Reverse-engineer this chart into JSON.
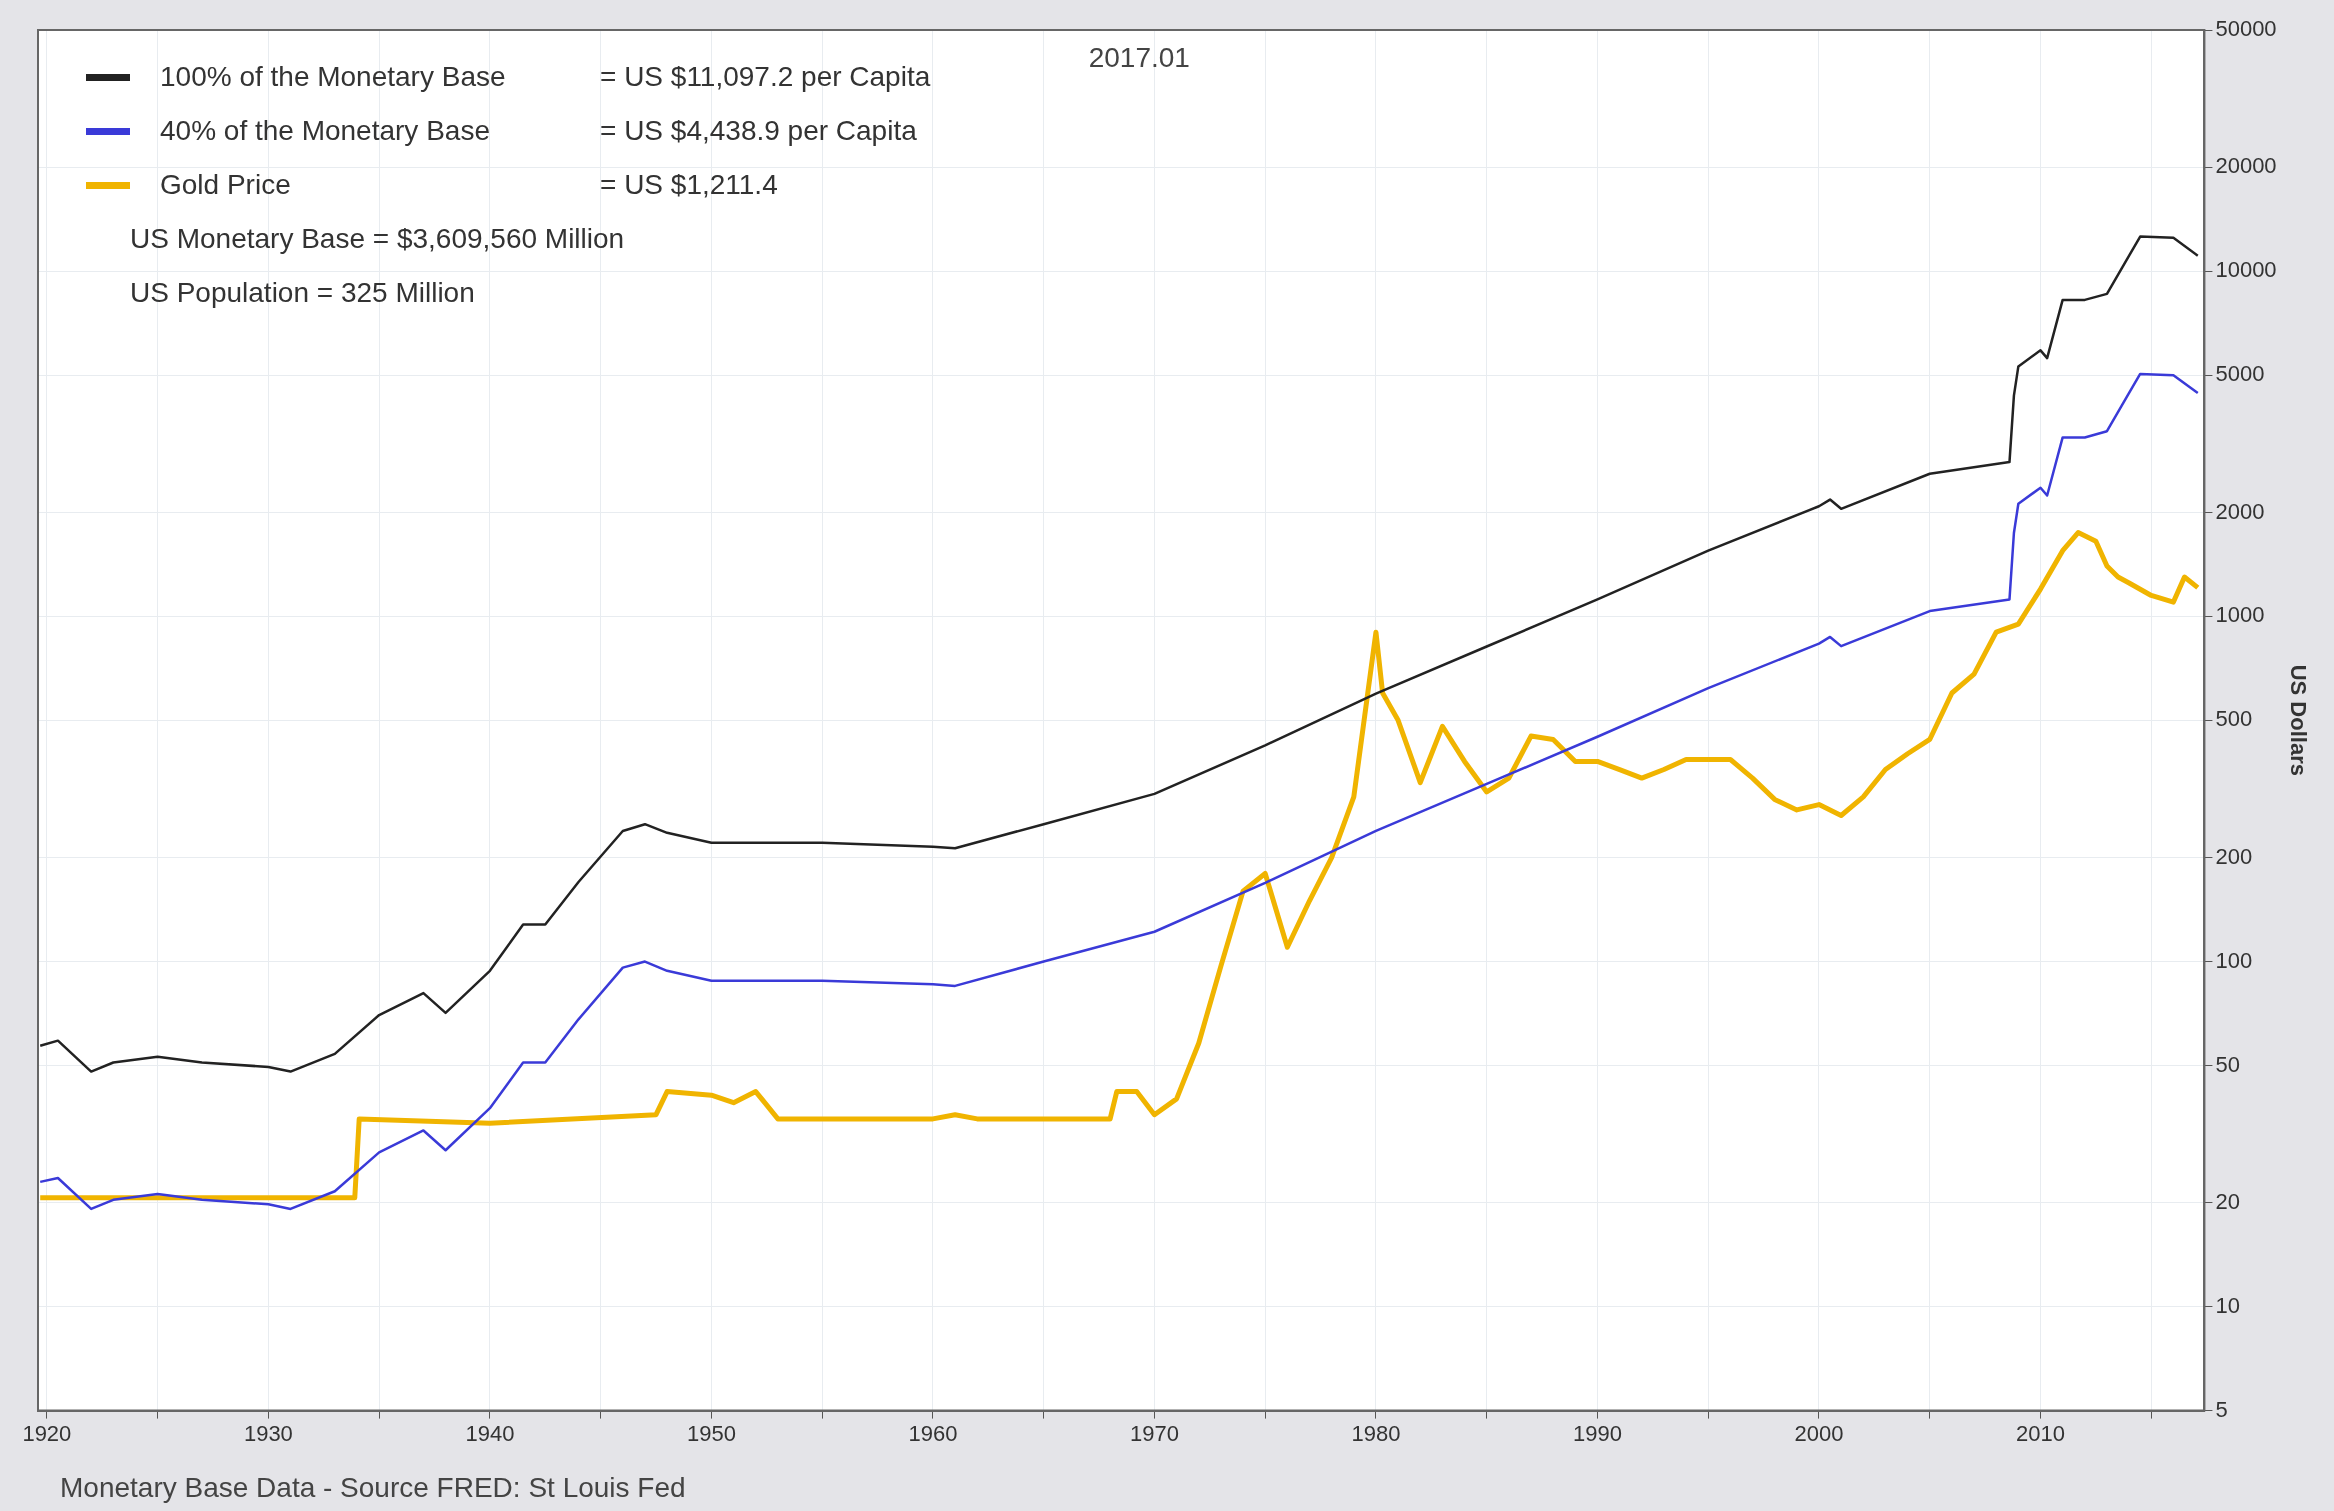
{
  "chart_data": {
    "type": "line",
    "ylabel": "US Dollars",
    "log": true,
    "grid": true,
    "legend": "top left",
    "xlim": [
      1919.6,
      2017.4
    ],
    "xticks": [
      1920,
      {
        "value": 1925,
        "label": null
      },
      1930,
      {
        "value": 1935,
        "label": null
      },
      1940,
      {
        "value": 1945,
        "label": null
      },
      1950,
      {
        "value": 1955,
        "label": null
      },
      1960,
      {
        "value": 1965,
        "label": null
      },
      1970,
      {
        "value": 1975,
        "label": null
      },
      1980,
      {
        "value": 1985,
        "label": null
      },
      1990,
      {
        "value": 1995,
        "label": null
      },
      2000,
      {
        "value": 2005,
        "label": null
      },
      2010,
      {
        "value": 2015,
        "label": null
      }
    ],
    "ylim": [
      5,
      50000
    ],
    "yticks": [
      5,
      10,
      20,
      50,
      100,
      200,
      500,
      1000,
      2000,
      5000,
      10000,
      20000,
      50000
    ],
    "annotations": [
      "= US $11,097.2 per Capita",
      "= US $4,438.9 per Capita",
      "= US $1,211.4",
      "US Monetary Base = $3,609,560 Million",
      "US Population = 325 Million",
      "2017.01",
      "Monetary Base Data - Source FRED: St Louis Fed"
    ],
    "series": [
      {
        "name": "100% of the Monetary Base",
        "color": "#222222",
        "x": [
          1919.7,
          1920.5,
          1922,
          1923,
          1925,
          1927,
          1930,
          1931,
          1933,
          1935,
          1937,
          1938,
          1940,
          1941.5,
          1942.5,
          1944,
          1946,
          1947,
          1948,
          1950,
          1955,
          1960,
          1961,
          1965,
          1970,
          1975,
          1980,
          1985,
          1990,
          1995,
          2000,
          2000.5,
          2001,
          2005,
          2008.6,
          2008.8,
          2009,
          2010,
          2010.3,
          2011,
          2012,
          2013,
          2014,
          2014.5,
          2016,
          2017.1
        ],
        "values": [
          57,
          59,
          48,
          51,
          53,
          51,
          49.5,
          48,
          54,
          70,
          81,
          71,
          94,
          128,
          128,
          170,
          239,
          250,
          236,
          221,
          221,
          215,
          213,
          250,
          306,
          423,
          597,
          818,
          1120,
          1550,
          2085,
          2180,
          2050,
          2590,
          2800,
          4360,
          5300,
          5900,
          5600,
          8260,
          8260,
          8600,
          11100,
          12600,
          12500,
          11097.2
        ]
      },
      {
        "name": "40% of the Monetary Base",
        "color": "#3a3ad8",
        "x": [
          1919.7,
          1920.5,
          1922,
          1923,
          1925,
          1927,
          1930,
          1931,
          1933,
          1935,
          1937,
          1938,
          1940,
          1941.5,
          1942.5,
          1944,
          1946,
          1947,
          1948,
          1950,
          1955,
          1960,
          1961,
          1965,
          1970,
          1975,
          1980,
          1985,
          1990,
          1995,
          2000,
          2000.5,
          2001,
          2005,
          2008.6,
          2008.8,
          2009,
          2010,
          2010.3,
          2011,
          2012,
          2013,
          2014,
          2014.5,
          2016,
          2017.1
        ],
        "values": [
          23,
          23.6,
          19.2,
          20.4,
          21.2,
          20.4,
          19.8,
          19.2,
          21.6,
          28,
          32.4,
          28.4,
          37.6,
          51,
          51,
          68,
          96,
          100,
          94,
          88,
          88,
          86,
          85,
          100,
          122,
          169,
          239,
          327,
          448,
          620,
          834,
          872,
          820,
          1036,
          1120,
          1744,
          2120,
          2360,
          2240,
          3300,
          3300,
          3440,
          4440,
          5040,
          5000,
          4438.9
        ]
      },
      {
        "name": "Gold Price",
        "color": "#f0b400",
        "x": [
          1919.7,
          1933.9,
          1934.1,
          1940,
          1947.5,
          1948,
          1950,
          1951,
          1952,
          1953,
          1955,
          1960,
          1961,
          1962,
          1968,
          1968.3,
          1969.2,
          1970,
          1971,
          1972,
          1973,
          1974,
          1975,
          1976,
          1977,
          1978,
          1979,
          1980,
          1980.3,
          1981,
          1982,
          1983,
          1984,
          1985,
          1986,
          1987,
          1988,
          1989,
          1990,
          1991,
          1992,
          1993,
          1994,
          1995,
          1996,
          1997,
          1998,
          1999,
          2000,
          2001,
          2002,
          2003,
          2004,
          2005,
          2006,
          2007,
          2008,
          2009,
          2010,
          2011,
          2011.7,
          2012.5,
          2013,
          2013.5,
          2014,
          2015,
          2016,
          2016.5,
          2017.1
        ],
        "values": [
          20.67,
          20.67,
          35,
          34,
          36,
          42,
          41,
          39,
          42,
          35,
          35,
          35,
          36,
          35,
          35,
          42,
          42,
          36,
          40,
          58,
          97,
          160,
          180,
          110,
          150,
          200,
          300,
          900,
          600,
          500,
          330,
          480,
          380,
          310,
          340,
          450,
          440,
          380,
          380,
          360,
          340,
          360,
          385,
          385,
          385,
          340,
          295,
          275,
          285,
          265,
          300,
          360,
          400,
          440,
          600,
          680,
          900,
          950,
          1200,
          1550,
          1750,
          1650,
          1400,
          1300,
          1250,
          1150,
          1100,
          1300,
          1211.4
        ]
      }
    ]
  }
}
